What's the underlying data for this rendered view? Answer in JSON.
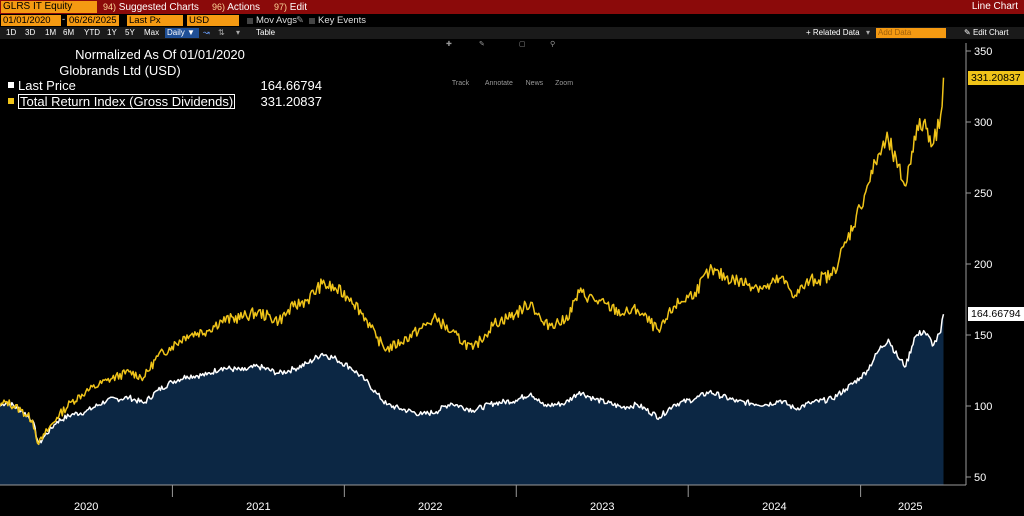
{
  "topbar": {
    "ticker": "GLRS IT Equity",
    "menu": [
      {
        "num": "94)",
        "label": "Suggested Charts"
      },
      {
        "num": "96)",
        "label": "Actions"
      },
      {
        "num": "97)",
        "label": "Edit"
      }
    ],
    "right_label": "Line Chart"
  },
  "controls": {
    "start_date": "01/01/2020",
    "end_date": "06/26/2025",
    "field": "Last Px",
    "currency": "USD",
    "mov_avgs": "Mov Avgs",
    "key_events": "Key Events"
  },
  "rangebar": {
    "ranges": [
      "1D",
      "3D",
      "1M",
      "6M",
      "YTD",
      "1Y",
      "5Y",
      "Max"
    ],
    "frequency": "Daily",
    "table": "Table",
    "related_data": "+ Related Data",
    "add_data": "Add Data",
    "edit_chart": "Edit Chart"
  },
  "toolbar": [
    "Track",
    "Annotate",
    "News",
    "Zoom"
  ],
  "legend": {
    "title": "Normalized As Of 01/01/2020",
    "subtitle": "Globrands Ltd (USD)",
    "items": [
      {
        "label": "Last Price",
        "value": "164.66794",
        "color": "#ffffff"
      },
      {
        "label": "Total Return Index (Gross Dividends)",
        "value": "331.20837",
        "color": "#f0c419"
      }
    ]
  },
  "colors": {
    "gold": "#f0c419",
    "white": "#ffffff",
    "area_fill": "#0c2744",
    "orange": "#f59a12",
    "header_red": "#8b0a0a"
  },
  "chart_data": {
    "type": "line",
    "x_labels": [
      "2020",
      "2021",
      "2022",
      "2023",
      "2024",
      "2025"
    ],
    "y_ticks": [
      50,
      100,
      150,
      200,
      250,
      300,
      350
    ],
    "ylim": [
      45,
      355
    ],
    "xlim": [
      "2020-01-01",
      "2025-07-31"
    ],
    "grid": false,
    "series": [
      {
        "name": "Last Price",
        "style": "white line with dark-blue area fill",
        "last_value": 164.66794,
        "points": [
          [
            "2020-01-01",
            100
          ],
          [
            "2020-01-15",
            103
          ],
          [
            "2020-02-15",
            97
          ],
          [
            "2020-03-10",
            90
          ],
          [
            "2020-03-23",
            73
          ],
          [
            "2020-04-05",
            79
          ],
          [
            "2020-05-01",
            89
          ],
          [
            "2020-06-01",
            94
          ],
          [
            "2020-07-01",
            96
          ],
          [
            "2020-08-15",
            104
          ],
          [
            "2020-10-01",
            106
          ],
          [
            "2020-11-01",
            102
          ],
          [
            "2020-12-01",
            111
          ],
          [
            "2020-12-31",
            117
          ],
          [
            "2021-02-01",
            121
          ],
          [
            "2021-03-15",
            122
          ],
          [
            "2021-04-15",
            127
          ],
          [
            "2021-06-01",
            125
          ],
          [
            "2021-07-01",
            128
          ],
          [
            "2021-08-15",
            123
          ],
          [
            "2021-09-15",
            126
          ],
          [
            "2021-10-15",
            130
          ],
          [
            "2021-11-15",
            137
          ],
          [
            "2021-12-15",
            133
          ],
          [
            "2022-01-15",
            127
          ],
          [
            "2022-02-15",
            118
          ],
          [
            "2022-03-10",
            109
          ],
          [
            "2022-04-01",
            101
          ],
          [
            "2022-05-01",
            98
          ],
          [
            "2022-06-15",
            94
          ],
          [
            "2022-07-15",
            96
          ],
          [
            "2022-08-15",
            102
          ],
          [
            "2022-10-01",
            97
          ],
          [
            "2022-11-15",
            102
          ],
          [
            "2022-12-31",
            104
          ],
          [
            "2023-02-01",
            109
          ],
          [
            "2023-03-01",
            100
          ],
          [
            "2023-04-15",
            102
          ],
          [
            "2023-05-15",
            110
          ],
          [
            "2023-06-15",
            105
          ],
          [
            "2023-08-15",
            99
          ],
          [
            "2023-09-15",
            101
          ],
          [
            "2023-11-01",
            92
          ],
          [
            "2023-12-01",
            101
          ],
          [
            "2024-01-15",
            105
          ],
          [
            "2024-02-15",
            110
          ],
          [
            "2024-04-15",
            103
          ],
          [
            "2024-06-15",
            101
          ],
          [
            "2024-07-15",
            104
          ],
          [
            "2024-08-15",
            98
          ],
          [
            "2024-09-15",
            102
          ],
          [
            "2024-11-01",
            105
          ],
          [
            "2024-12-01",
            112
          ],
          [
            "2024-12-31",
            120
          ],
          [
            "2025-01-15",
            125
          ],
          [
            "2025-02-10",
            140
          ],
          [
            "2025-03-01",
            147
          ],
          [
            "2025-03-20",
            135
          ],
          [
            "2025-04-07",
            128
          ],
          [
            "2025-04-25",
            148
          ],
          [
            "2025-05-15",
            153
          ],
          [
            "2025-06-05",
            143
          ],
          [
            "2025-06-20",
            152
          ],
          [
            "2025-06-26",
            164.67
          ]
        ]
      },
      {
        "name": "Total Return Index (Gross Dividends)",
        "style": "gold line",
        "last_value": 331.20837,
        "points": [
          [
            "2020-01-01",
            100
          ],
          [
            "2020-01-15",
            103
          ],
          [
            "2020-02-15",
            97
          ],
          [
            "2020-03-10",
            90
          ],
          [
            "2020-03-23",
            73
          ],
          [
            "2020-04-05",
            80
          ],
          [
            "2020-05-01",
            92
          ],
          [
            "2020-06-01",
            103
          ],
          [
            "2020-07-01",
            110
          ],
          [
            "2020-08-15",
            118
          ],
          [
            "2020-10-01",
            124
          ],
          [
            "2020-11-01",
            120
          ],
          [
            "2020-12-01",
            135
          ],
          [
            "2020-12-31",
            142
          ],
          [
            "2021-02-01",
            150
          ],
          [
            "2021-03-15",
            153
          ],
          [
            "2021-04-15",
            160
          ],
          [
            "2021-06-01",
            163
          ],
          [
            "2021-07-01",
            166
          ],
          [
            "2021-08-15",
            160
          ],
          [
            "2021-09-15",
            170
          ],
          [
            "2021-10-15",
            175
          ],
          [
            "2021-11-15",
            186
          ],
          [
            "2021-12-15",
            182
          ],
          [
            "2022-01-15",
            176
          ],
          [
            "2022-02-15",
            162
          ],
          [
            "2022-03-10",
            148
          ],
          [
            "2022-04-01",
            140
          ],
          [
            "2022-05-01",
            145
          ],
          [
            "2022-06-15",
            155
          ],
          [
            "2022-07-15",
            162
          ],
          [
            "2022-08-15",
            152
          ],
          [
            "2022-10-01",
            140
          ],
          [
            "2022-11-15",
            158
          ],
          [
            "2022-12-31",
            165
          ],
          [
            "2023-02-01",
            173
          ],
          [
            "2023-03-01",
            157
          ],
          [
            "2023-04-15",
            160
          ],
          [
            "2023-05-15",
            180
          ],
          [
            "2023-06-15",
            175
          ],
          [
            "2023-08-15",
            165
          ],
          [
            "2023-09-15",
            168
          ],
          [
            "2023-11-01",
            152
          ],
          [
            "2023-12-01",
            170
          ],
          [
            "2024-01-15",
            180
          ],
          [
            "2024-02-15",
            195
          ],
          [
            "2024-04-15",
            188
          ],
          [
            "2024-06-15",
            183
          ],
          [
            "2024-07-15",
            190
          ],
          [
            "2024-08-15",
            178
          ],
          [
            "2024-09-15",
            188
          ],
          [
            "2024-11-01",
            192
          ],
          [
            "2024-12-01",
            215
          ],
          [
            "2024-12-31",
            240
          ],
          [
            "2025-01-15",
            255
          ],
          [
            "2025-02-10",
            278
          ],
          [
            "2025-03-01",
            287
          ],
          [
            "2025-03-20",
            268
          ],
          [
            "2025-04-07",
            255
          ],
          [
            "2025-04-25",
            290
          ],
          [
            "2025-05-15",
            300
          ],
          [
            "2025-06-05",
            285
          ],
          [
            "2025-06-20",
            305
          ],
          [
            "2025-06-26",
            331.21
          ]
        ]
      }
    ]
  }
}
